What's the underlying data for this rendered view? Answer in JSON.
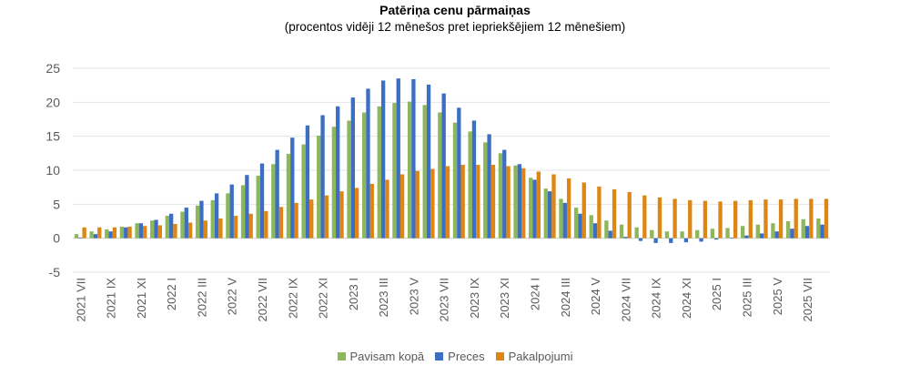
{
  "colors": {
    "total": "#8db75a",
    "goods": "#3c6fc2",
    "services": "#dd8615"
  },
  "chart_data": {
    "type": "bar",
    "title": "Patēriņa cenu pārmaiņas",
    "subtitle": "(procentos vidēji 12 mēnešos pret iepriekšējiem 12 mēnešiem)",
    "ylim": [
      -5,
      25
    ],
    "yticks": [
      -5,
      0,
      5,
      10,
      15,
      20,
      25
    ],
    "legend_position": "bottom",
    "categories": [
      "2021 VII",
      "2021 VIII",
      "2021 IX",
      "2021 X",
      "2021 XI",
      "2021 XII",
      "2022 I",
      "2022 II",
      "2022 III",
      "2022 IV",
      "2022 V",
      "2022 VI",
      "2022 VII",
      "2022 VIII",
      "2022 IX",
      "2022 X",
      "2022 XI",
      "2022 XII",
      "2023 I",
      "2023 II",
      "2023 III",
      "2023 IV",
      "2023 V",
      "2023 VI",
      "2023 VII",
      "2023 VIII",
      "2023 IX",
      "2023 X",
      "2023 XI",
      "2023 XII",
      "2024 I",
      "2024 II",
      "2024 III",
      "2024 IV",
      "2024 V",
      "2024 VI",
      "2024 VII",
      "2024 VIII",
      "2024 IX",
      "2024 X",
      "2024 XI",
      "2024 XII",
      "2025 I",
      "2025 II",
      "2025 III",
      "2025 IV",
      "2025 V",
      "2025 VI",
      "2025 VII",
      "2025 VIII"
    ],
    "tick_labels": [
      "2021 VII",
      "2021 IX",
      "2021 XI",
      "2022 I",
      "2022 III",
      "2022 V",
      "2022 VII",
      "2022 IX",
      "2022 XI",
      "2023 I",
      "2023 III",
      "2023 V",
      "2023 VII",
      "2023 IX",
      "2023 XI",
      "2024 I",
      "2024 III",
      "2024 V",
      "2024 VII",
      "2024 IX",
      "2024 XI",
      "2025 I",
      "2025 III",
      "2025 V",
      "2025 VII"
    ],
    "series": [
      {
        "name": "Pavisam kopā",
        "key": "total",
        "values": [
          0.6,
          1.0,
          1.3,
          1.7,
          2.2,
          2.6,
          3.3,
          3.9,
          4.8,
          5.6,
          6.6,
          7.8,
          9.2,
          10.9,
          12.4,
          13.8,
          15.1,
          16.4,
          17.3,
          18.5,
          19.4,
          19.9,
          20.1,
          19.6,
          18.5,
          17.0,
          15.7,
          14.1,
          12.5,
          10.7,
          8.9,
          7.3,
          5.8,
          4.5,
          3.4,
          2.6,
          2.0,
          1.6,
          1.2,
          1.0,
          1.0,
          1.2,
          1.4,
          1.5,
          1.8,
          2.0,
          2.2,
          2.5,
          2.8,
          2.9
        ]
      },
      {
        "name": "Preces",
        "key": "goods",
        "values": [
          0.1,
          0.6,
          1.0,
          1.6,
          2.2,
          2.7,
          3.6,
          4.5,
          5.5,
          6.6,
          7.9,
          9.3,
          11.0,
          13.0,
          14.8,
          16.6,
          18.1,
          19.4,
          20.7,
          22.0,
          23.2,
          23.5,
          23.4,
          22.6,
          21.3,
          19.2,
          17.3,
          15.3,
          13.0,
          10.9,
          8.6,
          6.9,
          5.2,
          3.6,
          2.2,
          1.1,
          0.2,
          -0.4,
          -0.7,
          -0.7,
          -0.6,
          -0.5,
          -0.2,
          0.1,
          0.4,
          0.7,
          1.0,
          1.4,
          1.8,
          2.0
        ]
      },
      {
        "name": "Pakalpojumi",
        "key": "services",
        "values": [
          1.6,
          1.6,
          1.6,
          1.7,
          1.8,
          1.9,
          2.1,
          2.3,
          2.6,
          2.9,
          3.3,
          3.6,
          4.0,
          4.6,
          5.2,
          5.7,
          6.3,
          6.9,
          7.4,
          8.0,
          8.6,
          9.4,
          9.9,
          10.2,
          10.6,
          10.8,
          10.8,
          10.8,
          10.6,
          10.3,
          9.8,
          9.4,
          8.8,
          8.2,
          7.6,
          7.2,
          6.8,
          6.3,
          6.0,
          5.8,
          5.6,
          5.5,
          5.4,
          5.5,
          5.6,
          5.7,
          5.7,
          5.8,
          5.8,
          5.8
        ]
      }
    ]
  }
}
